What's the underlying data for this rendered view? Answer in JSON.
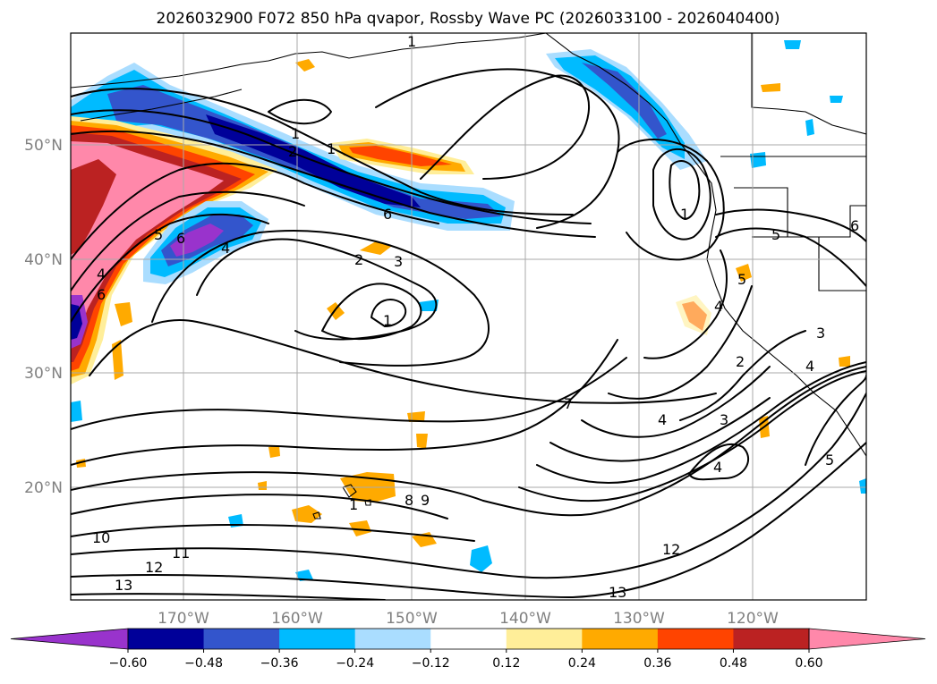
{
  "title": "2026032900 F072 850 hPa qvapor, Rossby Wave PC (2026033100 - 2026040400)",
  "map": {
    "lat_labels": [
      "50°N",
      "40°N",
      "30°N",
      "20°N"
    ],
    "lon_labels": [
      "170°W",
      "160°W",
      "150°W",
      "140°W",
      "130°W",
      "120°W"
    ]
  },
  "colorbar": {
    "ticks": [
      "-0.60",
      "-0.48",
      "-0.36",
      "-0.24",
      "-0.12",
      "0.12",
      "0.24",
      "0.36",
      "0.48",
      "0.60"
    ],
    "colors": [
      "#9933cc",
      "#000099",
      "#3355cc",
      "#00bbff",
      "#aaddff",
      "#ffffff",
      "#ffee99",
      "#ffaa00",
      "#ff4400",
      "#bb2222",
      "#ff88aa"
    ]
  },
  "contour_labels": [
    "1",
    "1",
    "2",
    "1",
    "6",
    "5",
    "6",
    "4",
    "4",
    "6",
    "2",
    "3",
    "1",
    "7",
    "4",
    "3",
    "2",
    "1",
    "5",
    "5",
    "4",
    "3",
    "4",
    "8",
    "9",
    "10",
    "11",
    "12",
    "13",
    "12",
    "13",
    "4",
    "5",
    "6",
    "1"
  ]
}
